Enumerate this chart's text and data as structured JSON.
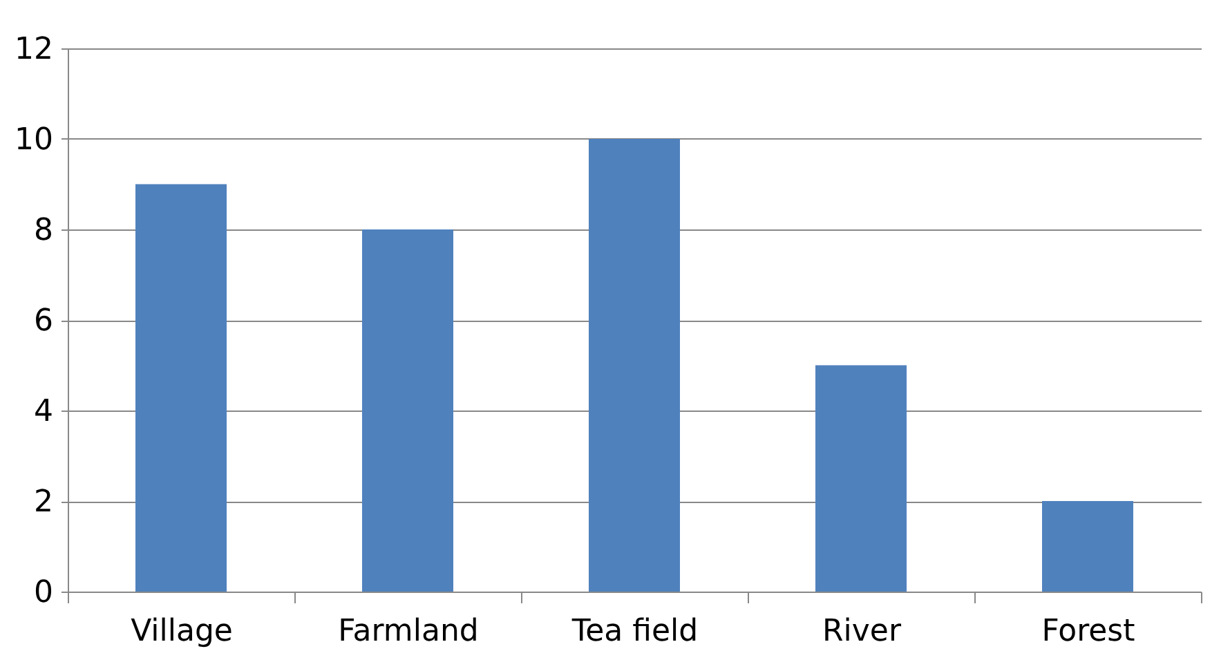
{
  "chart_data": {
    "type": "bar",
    "categories": [
      "Village",
      "Farmland",
      "Tea field",
      "River",
      "Forest"
    ],
    "values": [
      9,
      8,
      10,
      5,
      2
    ],
    "color": "#4f81bd",
    "ylim": [
      0,
      12
    ],
    "yticks": [
      0,
      2,
      4,
      6,
      8,
      10,
      12
    ],
    "grid": "y"
  }
}
